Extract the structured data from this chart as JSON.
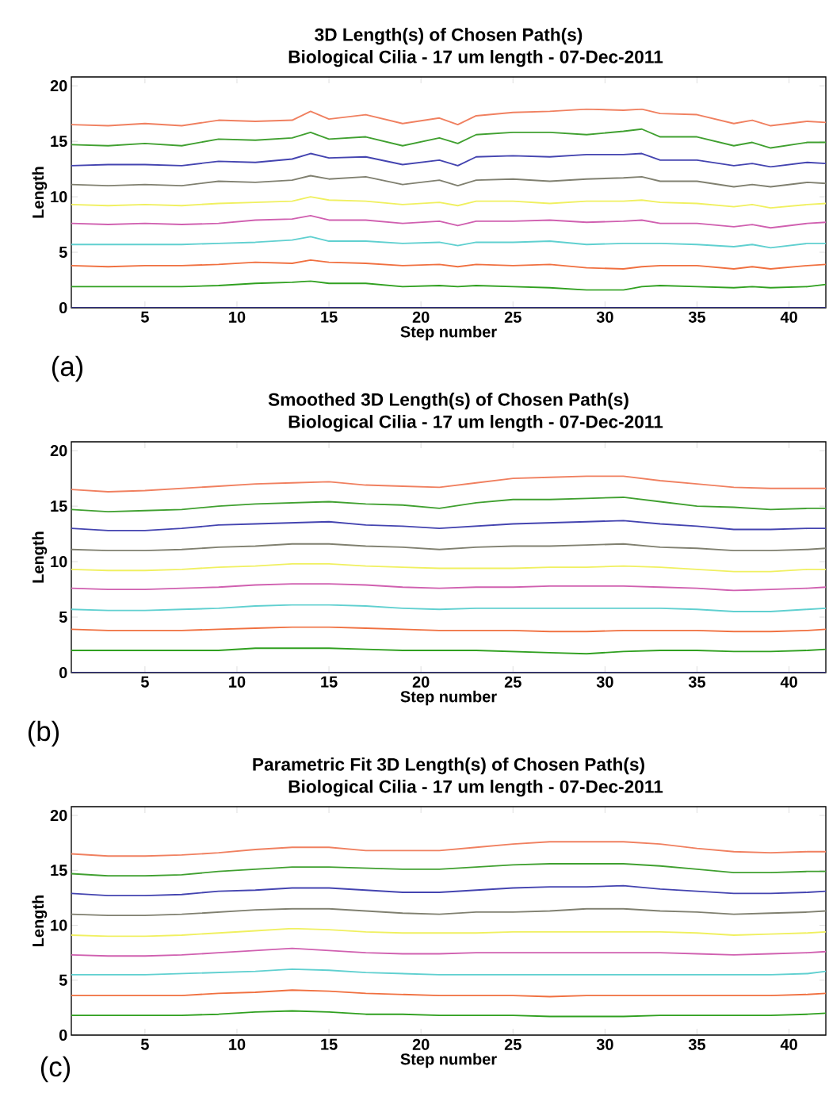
{
  "chart_data": [
    {
      "type": "line",
      "title": "3D Length(s) of Chosen Path(s)",
      "subtitle": "Biological Cilia - 17 um length - 07-Dec-2011",
      "xlabel": "Step number",
      "ylabel": "Length",
      "annotations": [
        "(a)"
      ],
      "xlim": [
        1,
        42
      ],
      "ylim": [
        0,
        20.8
      ],
      "xticks": [
        5,
        10,
        15,
        20,
        25,
        30,
        35,
        40
      ],
      "yticks": [
        0,
        5,
        10,
        15,
        20
      ],
      "x": [
        1,
        3,
        5,
        7,
        9,
        11,
        13,
        14,
        15,
        17,
        19,
        21,
        22,
        23,
        25,
        27,
        29,
        31,
        32,
        33,
        35,
        37,
        38,
        39,
        41,
        42
      ],
      "series": [
        {
          "color": "#f08060",
          "values": [
            16.5,
            16.4,
            16.6,
            16.4,
            16.9,
            16.8,
            16.9,
            17.7,
            17.0,
            17.4,
            16.6,
            17.1,
            16.5,
            17.3,
            17.6,
            17.7,
            17.9,
            17.8,
            17.9,
            17.5,
            17.4,
            16.6,
            16.9,
            16.4,
            16.8,
            16.7
          ]
        },
        {
          "color": "#40a030",
          "values": [
            14.7,
            14.6,
            14.8,
            14.6,
            15.2,
            15.1,
            15.3,
            15.8,
            15.2,
            15.4,
            14.6,
            15.3,
            14.8,
            15.6,
            15.8,
            15.8,
            15.6,
            15.9,
            16.1,
            15.4,
            15.4,
            14.6,
            14.9,
            14.4,
            14.9,
            14.9
          ]
        },
        {
          "color": "#4444b0",
          "values": [
            12.8,
            12.9,
            12.9,
            12.8,
            13.2,
            13.1,
            13.4,
            13.9,
            13.5,
            13.6,
            12.9,
            13.3,
            12.8,
            13.6,
            13.7,
            13.6,
            13.8,
            13.8,
            13.9,
            13.3,
            13.3,
            12.8,
            13.0,
            12.7,
            13.1,
            13.0
          ]
        },
        {
          "color": "#808070",
          "values": [
            11.1,
            11.0,
            11.1,
            11.0,
            11.4,
            11.3,
            11.5,
            11.9,
            11.6,
            11.8,
            11.1,
            11.5,
            11.0,
            11.5,
            11.6,
            11.4,
            11.6,
            11.7,
            11.8,
            11.4,
            11.4,
            10.9,
            11.1,
            10.9,
            11.3,
            11.2
          ]
        },
        {
          "color": "#f0f060",
          "values": [
            9.3,
            9.2,
            9.3,
            9.2,
            9.4,
            9.5,
            9.6,
            10.0,
            9.7,
            9.6,
            9.3,
            9.5,
            9.2,
            9.6,
            9.6,
            9.4,
            9.6,
            9.6,
            9.7,
            9.5,
            9.4,
            9.1,
            9.3,
            9.0,
            9.3,
            9.4
          ]
        },
        {
          "color": "#d060b0",
          "values": [
            7.6,
            7.5,
            7.6,
            7.5,
            7.6,
            7.9,
            8.0,
            8.3,
            7.9,
            7.9,
            7.6,
            7.8,
            7.4,
            7.8,
            7.8,
            7.9,
            7.7,
            7.8,
            7.9,
            7.6,
            7.6,
            7.3,
            7.5,
            7.2,
            7.6,
            7.7
          ]
        },
        {
          "color": "#60d0d0",
          "values": [
            5.7,
            5.7,
            5.7,
            5.7,
            5.8,
            5.9,
            6.1,
            6.4,
            6.0,
            6.0,
            5.8,
            5.9,
            5.6,
            5.9,
            5.9,
            6.0,
            5.7,
            5.8,
            5.8,
            5.8,
            5.7,
            5.5,
            5.7,
            5.4,
            5.8,
            5.8
          ]
        },
        {
          "color": "#f07040",
          "values": [
            3.8,
            3.7,
            3.8,
            3.8,
            3.9,
            4.1,
            4.0,
            4.3,
            4.1,
            4.0,
            3.8,
            3.9,
            3.7,
            3.9,
            3.8,
            3.9,
            3.6,
            3.5,
            3.7,
            3.8,
            3.8,
            3.5,
            3.7,
            3.5,
            3.8,
            3.9
          ]
        },
        {
          "color": "#30a020",
          "values": [
            1.9,
            1.9,
            1.9,
            1.9,
            2.0,
            2.2,
            2.3,
            2.4,
            2.2,
            2.2,
            1.9,
            2.0,
            1.9,
            2.0,
            1.9,
            1.8,
            1.6,
            1.6,
            1.9,
            2.0,
            1.9,
            1.8,
            1.9,
            1.8,
            1.9,
            2.1
          ]
        },
        {
          "color": "#303080",
          "values": [
            0,
            0,
            0,
            0,
            0,
            0,
            0,
            0,
            0,
            0,
            0,
            0,
            0,
            0,
            0,
            0,
            0,
            0,
            0,
            0,
            0,
            0,
            0,
            0,
            0,
            0
          ]
        }
      ]
    },
    {
      "type": "line",
      "title": "Smoothed 3D Length(s) of Chosen Path(s)",
      "subtitle": "Biological Cilia - 17 um length - 07-Dec-2011",
      "xlabel": "Step number",
      "ylabel": "Length",
      "annotations": [
        "(b)"
      ],
      "xlim": [
        1,
        42
      ],
      "ylim": [
        0,
        20.8
      ],
      "xticks": [
        5,
        10,
        15,
        20,
        25,
        30,
        35,
        40
      ],
      "yticks": [
        0,
        5,
        10,
        15,
        20
      ],
      "x": [
        1,
        3,
        5,
        7,
        9,
        11,
        13,
        15,
        17,
        19,
        21,
        23,
        25,
        27,
        29,
        31,
        33,
        35,
        37,
        39,
        41,
        42
      ],
      "series": [
        {
          "color": "#f08060",
          "values": [
            16.5,
            16.3,
            16.4,
            16.6,
            16.8,
            17.0,
            17.1,
            17.2,
            16.9,
            16.8,
            16.7,
            17.1,
            17.5,
            17.6,
            17.7,
            17.7,
            17.3,
            17.0,
            16.7,
            16.6,
            16.6,
            16.6
          ]
        },
        {
          "color": "#40a030",
          "values": [
            14.7,
            14.5,
            14.6,
            14.7,
            15.0,
            15.2,
            15.3,
            15.4,
            15.2,
            15.1,
            14.8,
            15.3,
            15.6,
            15.6,
            15.7,
            15.8,
            15.4,
            15.0,
            14.9,
            14.7,
            14.8,
            14.8
          ]
        },
        {
          "color": "#4444b0",
          "values": [
            13.0,
            12.8,
            12.8,
            13.0,
            13.3,
            13.4,
            13.5,
            13.6,
            13.3,
            13.2,
            13.0,
            13.2,
            13.4,
            13.5,
            13.6,
            13.7,
            13.4,
            13.2,
            12.9,
            12.9,
            13.0,
            13.0
          ]
        },
        {
          "color": "#808070",
          "values": [
            11.1,
            11.0,
            11.0,
            11.1,
            11.3,
            11.4,
            11.6,
            11.6,
            11.4,
            11.3,
            11.1,
            11.3,
            11.4,
            11.4,
            11.5,
            11.6,
            11.3,
            11.2,
            11.0,
            11.0,
            11.1,
            11.2
          ]
        },
        {
          "color": "#f0f060",
          "values": [
            9.3,
            9.2,
            9.2,
            9.3,
            9.5,
            9.6,
            9.8,
            9.8,
            9.6,
            9.5,
            9.4,
            9.4,
            9.4,
            9.5,
            9.5,
            9.6,
            9.5,
            9.3,
            9.1,
            9.1,
            9.3,
            9.3
          ]
        },
        {
          "color": "#d060b0",
          "values": [
            7.6,
            7.5,
            7.5,
            7.6,
            7.7,
            7.9,
            8.0,
            8.0,
            7.9,
            7.7,
            7.6,
            7.7,
            7.7,
            7.8,
            7.8,
            7.8,
            7.7,
            7.6,
            7.4,
            7.5,
            7.6,
            7.7
          ]
        },
        {
          "color": "#60d0d0",
          "values": [
            5.7,
            5.6,
            5.6,
            5.7,
            5.8,
            6.0,
            6.1,
            6.1,
            6.0,
            5.8,
            5.7,
            5.8,
            5.8,
            5.8,
            5.8,
            5.8,
            5.8,
            5.7,
            5.5,
            5.5,
            5.7,
            5.8
          ]
        },
        {
          "color": "#f07040",
          "values": [
            3.9,
            3.8,
            3.8,
            3.8,
            3.9,
            4.0,
            4.1,
            4.1,
            4.0,
            3.9,
            3.8,
            3.8,
            3.8,
            3.7,
            3.7,
            3.8,
            3.8,
            3.8,
            3.7,
            3.7,
            3.8,
            3.9
          ]
        },
        {
          "color": "#30a020",
          "values": [
            2.0,
            2.0,
            2.0,
            2.0,
            2.0,
            2.2,
            2.2,
            2.2,
            2.1,
            2.0,
            2.0,
            2.0,
            1.9,
            1.8,
            1.7,
            1.9,
            2.0,
            2.0,
            1.9,
            1.9,
            2.0,
            2.1
          ]
        },
        {
          "color": "#303080",
          "values": [
            0,
            0,
            0,
            0,
            0,
            0,
            0,
            0,
            0,
            0,
            0,
            0,
            0,
            0,
            0,
            0,
            0,
            0,
            0,
            0,
            0,
            0
          ]
        }
      ]
    },
    {
      "type": "line",
      "title": "Parametric Fit 3D Length(s) of Chosen Path(s)",
      "subtitle": "Biological Cilia - 17 um length - 07-Dec-2011",
      "xlabel": "Step number",
      "ylabel": "Length",
      "annotations": [
        "(c)"
      ],
      "xlim": [
        1,
        42
      ],
      "ylim": [
        0,
        20.8
      ],
      "xticks": [
        5,
        10,
        15,
        20,
        25,
        30,
        35,
        40
      ],
      "yticks": [
        0,
        5,
        10,
        15,
        20
      ],
      "x": [
        1,
        3,
        5,
        7,
        9,
        11,
        13,
        15,
        17,
        19,
        21,
        23,
        25,
        27,
        29,
        31,
        33,
        35,
        37,
        39,
        41,
        42
      ],
      "series": [
        {
          "color": "#f08060",
          "values": [
            16.5,
            16.3,
            16.3,
            16.4,
            16.6,
            16.9,
            17.1,
            17.1,
            16.8,
            16.8,
            16.8,
            17.1,
            17.4,
            17.6,
            17.6,
            17.6,
            17.4,
            17.0,
            16.7,
            16.6,
            16.7,
            16.7
          ]
        },
        {
          "color": "#40a030",
          "values": [
            14.7,
            14.5,
            14.5,
            14.6,
            14.9,
            15.1,
            15.3,
            15.3,
            15.2,
            15.1,
            15.1,
            15.3,
            15.5,
            15.6,
            15.6,
            15.6,
            15.4,
            15.1,
            14.8,
            14.8,
            14.9,
            14.9
          ]
        },
        {
          "color": "#4444b0",
          "values": [
            12.9,
            12.7,
            12.7,
            12.8,
            13.1,
            13.2,
            13.4,
            13.4,
            13.2,
            13.0,
            13.0,
            13.2,
            13.4,
            13.5,
            13.5,
            13.6,
            13.3,
            13.1,
            12.9,
            12.9,
            13.0,
            13.1
          ]
        },
        {
          "color": "#808070",
          "values": [
            11.0,
            10.9,
            10.9,
            11.0,
            11.2,
            11.4,
            11.5,
            11.5,
            11.3,
            11.1,
            11.0,
            11.2,
            11.2,
            11.3,
            11.5,
            11.5,
            11.3,
            11.2,
            11.0,
            11.1,
            11.2,
            11.3
          ]
        },
        {
          "color": "#f0f060",
          "values": [
            9.1,
            9.0,
            9.0,
            9.1,
            9.3,
            9.5,
            9.7,
            9.6,
            9.4,
            9.3,
            9.3,
            9.3,
            9.4,
            9.4,
            9.4,
            9.4,
            9.4,
            9.3,
            9.1,
            9.2,
            9.3,
            9.4
          ]
        },
        {
          "color": "#d060b0",
          "values": [
            7.3,
            7.2,
            7.2,
            7.3,
            7.5,
            7.7,
            7.9,
            7.7,
            7.5,
            7.4,
            7.4,
            7.5,
            7.5,
            7.5,
            7.5,
            7.5,
            7.5,
            7.4,
            7.3,
            7.4,
            7.5,
            7.6
          ]
        },
        {
          "color": "#60d0d0",
          "values": [
            5.5,
            5.5,
            5.5,
            5.6,
            5.7,
            5.8,
            6.0,
            5.9,
            5.7,
            5.6,
            5.5,
            5.5,
            5.5,
            5.5,
            5.5,
            5.5,
            5.5,
            5.5,
            5.5,
            5.5,
            5.6,
            5.8
          ]
        },
        {
          "color": "#f07040",
          "values": [
            3.6,
            3.6,
            3.6,
            3.6,
            3.8,
            3.9,
            4.1,
            4.0,
            3.8,
            3.7,
            3.6,
            3.6,
            3.6,
            3.5,
            3.6,
            3.6,
            3.6,
            3.6,
            3.6,
            3.6,
            3.7,
            3.8
          ]
        },
        {
          "color": "#30a020",
          "values": [
            1.8,
            1.8,
            1.8,
            1.8,
            1.9,
            2.1,
            2.2,
            2.1,
            1.9,
            1.9,
            1.8,
            1.8,
            1.8,
            1.7,
            1.7,
            1.7,
            1.8,
            1.8,
            1.8,
            1.8,
            1.9,
            2.0
          ]
        }
      ]
    }
  ]
}
